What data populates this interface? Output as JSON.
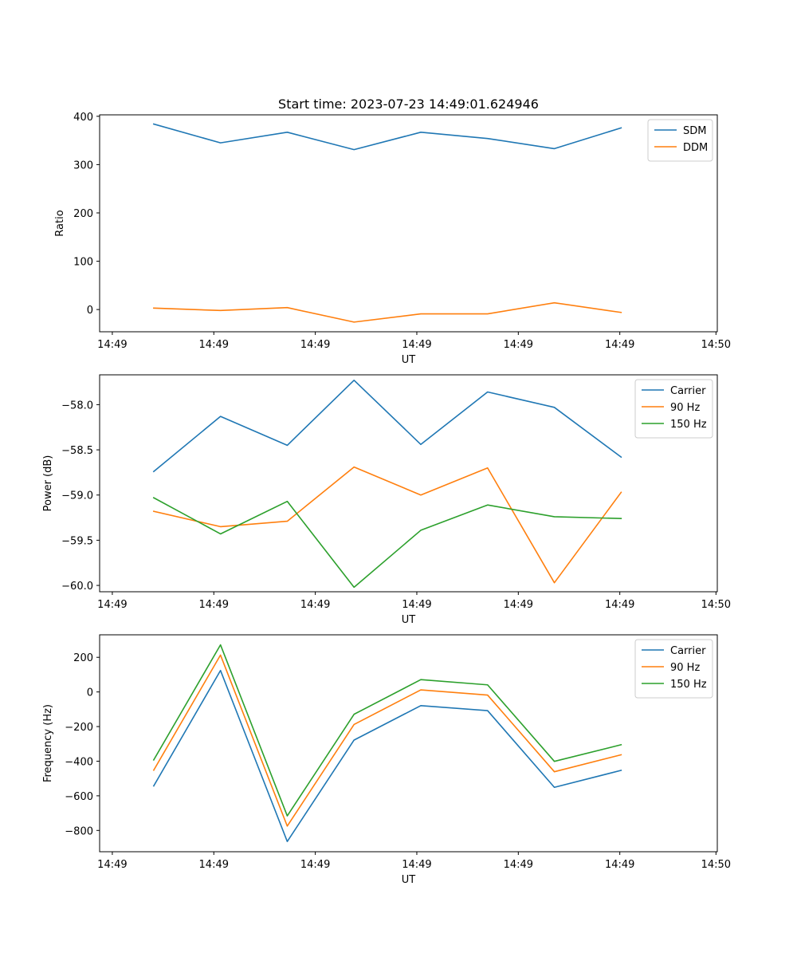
{
  "figure_title": "Start time: 2023-07-23 14:49:01.624946",
  "chart_data": [
    {
      "type": "line",
      "title": "Start time: 2023-07-23 14:49:01.624946",
      "xlabel": "UT",
      "ylabel": "Ratio",
      "x": [
        1,
        2,
        3,
        4,
        5,
        6,
        7,
        8
      ],
      "xlim": [
        0.19,
        9.44
      ],
      "x_ticks": [
        0.38,
        1.9,
        3.42,
        4.94,
        6.46,
        7.98,
        9.42
      ],
      "x_tick_labels": [
        "14:49",
        "14:49",
        "14:49",
        "14:49",
        "14:49",
        "14:49",
        "14:50"
      ],
      "ylim": [
        -46,
        403
      ],
      "y_ticks": [
        0,
        100,
        200,
        300,
        400
      ],
      "y_tick_labels": [
        "0",
        "100",
        "200",
        "300",
        "400"
      ],
      "legend_position": "top-right",
      "series": [
        {
          "name": "SDM",
          "color": "#1f77b4",
          "values": [
            384,
            345,
            367,
            331,
            367,
            354,
            333,
            376
          ]
        },
        {
          "name": "DDM",
          "color": "#ff7f0e",
          "values": [
            3,
            -2,
            4,
            -26,
            -9,
            -9,
            14,
            -6
          ]
        }
      ]
    },
    {
      "type": "line",
      "title": "",
      "xlabel": "UT",
      "ylabel": "Power (dB)",
      "x": [
        1,
        2,
        3,
        4,
        5,
        6,
        7,
        8
      ],
      "xlim": [
        0.19,
        9.44
      ],
      "x_ticks": [
        0.38,
        1.9,
        3.42,
        4.94,
        6.46,
        7.98,
        9.42
      ],
      "x_tick_labels": [
        "14:49",
        "14:49",
        "14:49",
        "14:49",
        "14:49",
        "14:49",
        "14:50"
      ],
      "ylim": [
        -60.07,
        -57.67
      ],
      "y_ticks": [
        -58.0,
        -58.5,
        -59.0,
        -59.5,
        -60.0
      ],
      "y_tick_labels": [
        "−58.0",
        "−58.5",
        "−59.0",
        "−59.5",
        "−60.0"
      ],
      "legend_position": "top-right",
      "series": [
        {
          "name": "Carrier",
          "color": "#1f77b4",
          "values": [
            -58.74,
            -58.13,
            -58.45,
            -57.73,
            -58.44,
            -57.86,
            -58.03,
            -58.58
          ]
        },
        {
          "name": "90 Hz",
          "color": "#ff7f0e",
          "values": [
            -59.18,
            -59.35,
            -59.29,
            -58.69,
            -59.0,
            -58.7,
            -59.97,
            -58.97
          ]
        },
        {
          "name": "150 Hz",
          "color": "#2ca02c",
          "values": [
            -59.03,
            -59.43,
            -59.07,
            -60.02,
            -59.39,
            -59.11,
            -59.24,
            -59.26
          ]
        }
      ]
    },
    {
      "type": "line",
      "title": "",
      "xlabel": "UT",
      "ylabel": "Frequency (Hz)",
      "x": [
        1,
        2,
        3,
        4,
        5,
        6,
        7,
        8
      ],
      "xlim": [
        0.19,
        9.44
      ],
      "x_ticks": [
        0.38,
        1.9,
        3.42,
        4.94,
        6.46,
        7.98,
        9.42
      ],
      "x_tick_labels": [
        "14:49",
        "14:49",
        "14:49",
        "14:49",
        "14:49",
        "14:49",
        "14:50"
      ],
      "ylim": [
        -923,
        330
      ],
      "y_ticks": [
        200,
        0,
        -200,
        -400,
        -600,
        -800
      ],
      "y_tick_labels": [
        "200",
        "0",
        "−200",
        "−400",
        "−600",
        "−800"
      ],
      "legend_position": "top-right",
      "series": [
        {
          "name": "Carrier",
          "color": "#1f77b4",
          "values": [
            -543,
            124,
            -864,
            -278,
            -79,
            -108,
            -551,
            -453
          ]
        },
        {
          "name": "90 Hz",
          "color": "#ff7f0e",
          "values": [
            -452,
            213,
            -775,
            -188,
            12,
            -18,
            -461,
            -363
          ]
        },
        {
          "name": "150 Hz",
          "color": "#2ca02c",
          "values": [
            -393,
            272,
            -716,
            -129,
            71,
            41,
            -401,
            -305
          ]
        }
      ]
    }
  ]
}
